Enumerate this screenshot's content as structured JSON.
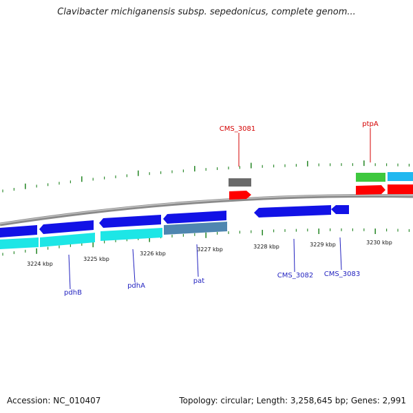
{
  "title": "Clavibacter michiganensis subsp. sepedonicus, complete genom...",
  "footer": {
    "accession": "Accession: NC_010407",
    "topology": "Topology: circular; Length: 3,258,645 bp; Genes: 2,991"
  },
  "colors": {
    "backbone": "#8c8c8c",
    "tick": "#2e8b2e",
    "forward_gene": "#ff0000",
    "reverse_gene": "#1212e6",
    "cds_cyan": "#1de6e6",
    "cds_steel": "#4f86b0",
    "pseudo_gray": "#6a6a6a",
    "green_feature": "#3ec83e",
    "sky_feature": "#20b8f0",
    "label_blue": "#1f1fbf",
    "label_red": "#d40000"
  },
  "scale_labels": [
    "3224 kbp",
    "3225 kbp",
    "3226 kbp",
    "3227 kbp",
    "3228 kbp",
    "3229 kbp",
    "3230 kbp"
  ],
  "gene_labels": [
    {
      "name": "CMS_3081",
      "strand": "forward"
    },
    {
      "name": "ptpA",
      "strand": "forward"
    },
    {
      "name": "pdhB",
      "strand": "reverse"
    },
    {
      "name": "pdhA",
      "strand": "reverse"
    },
    {
      "name": "pat",
      "strand": "reverse"
    },
    {
      "name": "CMS_3082",
      "strand": "reverse"
    },
    {
      "name": "CMS_3083",
      "strand": "reverse"
    }
  ]
}
